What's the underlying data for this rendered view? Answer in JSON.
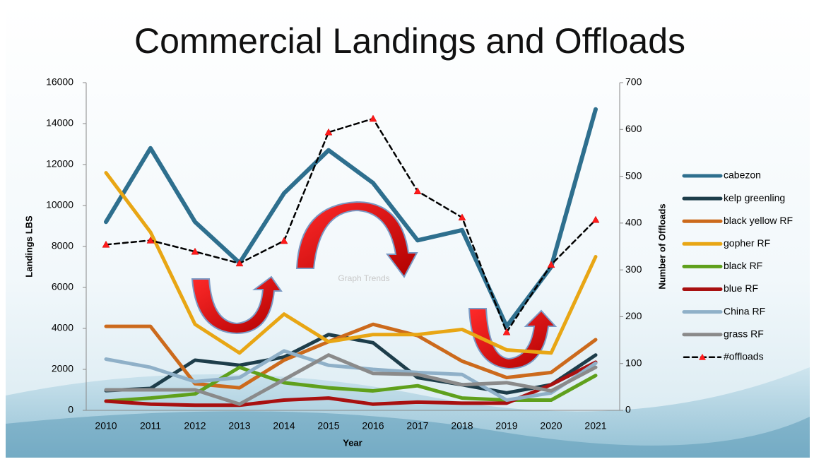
{
  "chart_data": {
    "type": "line",
    "title": "Commercial Landings and Offloads",
    "xlabel": "Year",
    "ylabel": "Landings LBS",
    "y2label": "Number of Offloads",
    "annotation": "Graph Trends",
    "categories": [
      "2010",
      "2011",
      "2012",
      "2013",
      "2014",
      "2015",
      "2016",
      "2017",
      "2018",
      "2019",
      "2020",
      "2021"
    ],
    "ylim": [
      0,
      16000
    ],
    "yticks": [
      0,
      2000,
      4000,
      6000,
      8000,
      10000,
      12000,
      14000,
      16000
    ],
    "y2lim": [
      0,
      700
    ],
    "y2ticks": [
      0,
      100,
      200,
      300,
      400,
      500,
      600,
      700
    ],
    "legend": "right",
    "series": [
      {
        "name": "cabezon",
        "color": "#2e6f8e",
        "width": 6,
        "values": [
          9200,
          12800,
          9200,
          7200,
          10600,
          12700,
          11100,
          8300,
          8800,
          4100,
          7000,
          14700
        ]
      },
      {
        "name": "kelp greenling",
        "color": "#1d3d4a",
        "width": 5,
        "values": [
          960,
          1070,
          2450,
          2200,
          2600,
          3700,
          3300,
          1600,
          1250,
          850,
          1250,
          2700
        ]
      },
      {
        "name": "black yellow RF",
        "color": "#cc6a1c",
        "width": 5,
        "values": [
          4100,
          4100,
          1300,
          1100,
          2450,
          3350,
          4200,
          3650,
          2400,
          1600,
          1850,
          3450
        ]
      },
      {
        "name": "gopher RF",
        "color": "#e8a614",
        "width": 5,
        "values": [
          11600,
          8700,
          4200,
          2800,
          4700,
          3350,
          3700,
          3700,
          3950,
          2950,
          2800,
          7500
        ]
      },
      {
        "name": "black RF",
        "color": "#5fa01c",
        "width": 5,
        "values": [
          450,
          600,
          800,
          2100,
          1350,
          1100,
          950,
          1200,
          600,
          500,
          500,
          1700
        ]
      },
      {
        "name": "blue RF",
        "color": "#a81010",
        "width": 5,
        "values": [
          450,
          300,
          250,
          250,
          500,
          600,
          300,
          400,
          350,
          350,
          1250,
          2350
        ]
      },
      {
        "name": "China RF",
        "color": "#8fb0c8",
        "width": 5,
        "values": [
          2500,
          2100,
          1400,
          1600,
          2900,
          2200,
          2000,
          1850,
          1750,
          500,
          850,
          2300
        ]
      },
      {
        "name": "grass RF",
        "color": "#8a8a8a",
        "width": 5,
        "values": [
          1000,
          1000,
          1000,
          300,
          1500,
          2700,
          1800,
          1750,
          1250,
          1350,
          950,
          2100
        ]
      },
      {
        "name": "#offloads",
        "color": "#000000",
        "width": 2.5,
        "line_style": "dashed",
        "marker": "triangle",
        "marker_color": "#ff1a1a",
        "axis": "y2",
        "values": [
          354,
          363,
          339,
          314,
          362,
          594,
          623,
          468,
          412,
          167,
          311,
          407
        ]
      }
    ]
  }
}
